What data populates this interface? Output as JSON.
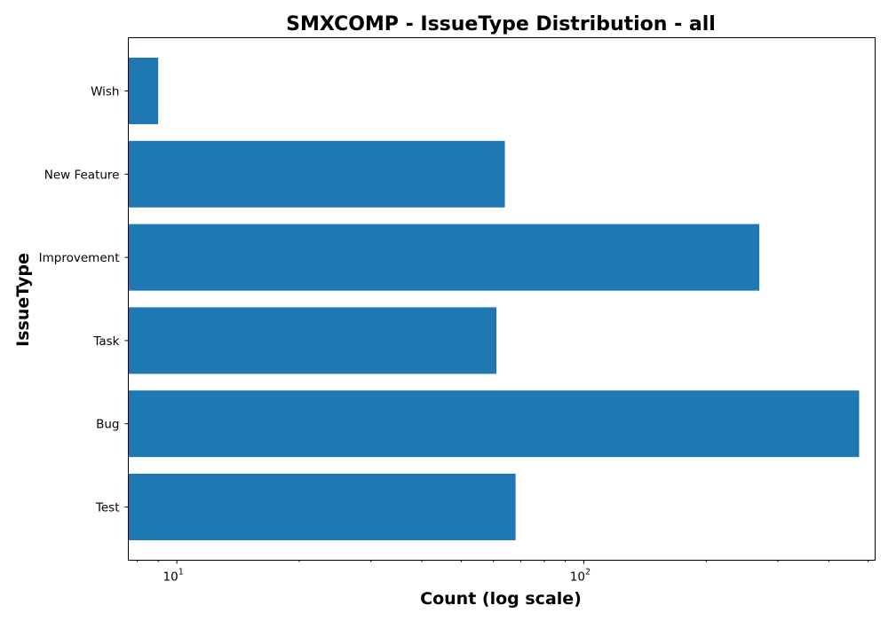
{
  "chart_data": {
    "type": "bar",
    "orientation": "horizontal",
    "title": "SMXCOMP - IssueType Distribution - all",
    "xlabel": "Count (log scale)",
    "ylabel": "IssueType",
    "xscale": "log",
    "xlim": [
      7.6,
      520
    ],
    "x_ticks": [
      {
        "value": 10,
        "base": "10",
        "exp": "1"
      },
      {
        "value": 100,
        "base": "10",
        "exp": "2"
      }
    ],
    "categories": [
      "Test",
      "Bug",
      "Task",
      "Improvement",
      "New Feature",
      "Wish"
    ],
    "values": [
      68,
      475,
      61,
      270,
      64,
      9
    ],
    "bar_color": "#1f77b4",
    "grid": false,
    "legend": "none"
  }
}
